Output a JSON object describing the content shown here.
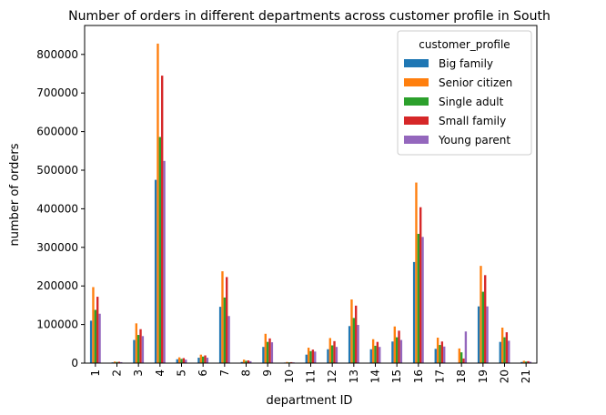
{
  "chart_data": {
    "type": "bar",
    "title": "Number of orders in different departments across customer profile in South",
    "xlabel": "department ID",
    "ylabel": "number of orders",
    "ylim": [
      0,
      875000
    ],
    "yticks": [
      0,
      100000,
      200000,
      300000,
      400000,
      500000,
      600000,
      700000,
      800000
    ],
    "grid": false,
    "legend_position": "top-right",
    "legend_title": "customer_profile",
    "categories": [
      "1",
      "2",
      "3",
      "4",
      "5",
      "6",
      "7",
      "8",
      "9",
      "10",
      "11",
      "12",
      "13",
      "14",
      "15",
      "16",
      "17",
      "18",
      "19",
      "20",
      "21"
    ],
    "series": [
      {
        "name": "Big family",
        "color": "#1f77b4",
        "values": [
          110000,
          2000,
          60000,
          475000,
          10000,
          14000,
          146000,
          3000,
          42000,
          1500,
          22000,
          36000,
          96000,
          36000,
          56000,
          262000,
          37000,
          1000,
          147000,
          55000,
          3000
        ]
      },
      {
        "name": "Senior citizen",
        "color": "#ff7f0e",
        "values": [
          197000,
          4000,
          103000,
          828000,
          15000,
          22000,
          238000,
          9000,
          76000,
          3000,
          40000,
          65000,
          165000,
          62000,
          95000,
          468000,
          66000,
          38000,
          252000,
          92000,
          6000
        ]
      },
      {
        "name": "Single adult",
        "color": "#2ca02c",
        "values": [
          138000,
          3000,
          73000,
          586000,
          11000,
          17000,
          170000,
          6000,
          55000,
          2000,
          31000,
          46000,
          117000,
          45000,
          67000,
          335000,
          47000,
          28000,
          185000,
          67000,
          4000
        ]
      },
      {
        "name": "Small family",
        "color": "#d62728",
        "values": [
          172000,
          3500,
          88000,
          745000,
          13000,
          20000,
          223000,
          7000,
          64000,
          2500,
          35000,
          57000,
          149000,
          55000,
          84000,
          404000,
          56000,
          12000,
          228000,
          80000,
          5000
        ]
      },
      {
        "name": "Young parent",
        "color": "#9467bd",
        "values": [
          128000,
          2500,
          70000,
          524000,
          9000,
          14000,
          122000,
          5000,
          54000,
          2000,
          30000,
          42000,
          99000,
          42000,
          60000,
          327000,
          43000,
          82000,
          147000,
          58000,
          3500
        ]
      }
    ]
  }
}
